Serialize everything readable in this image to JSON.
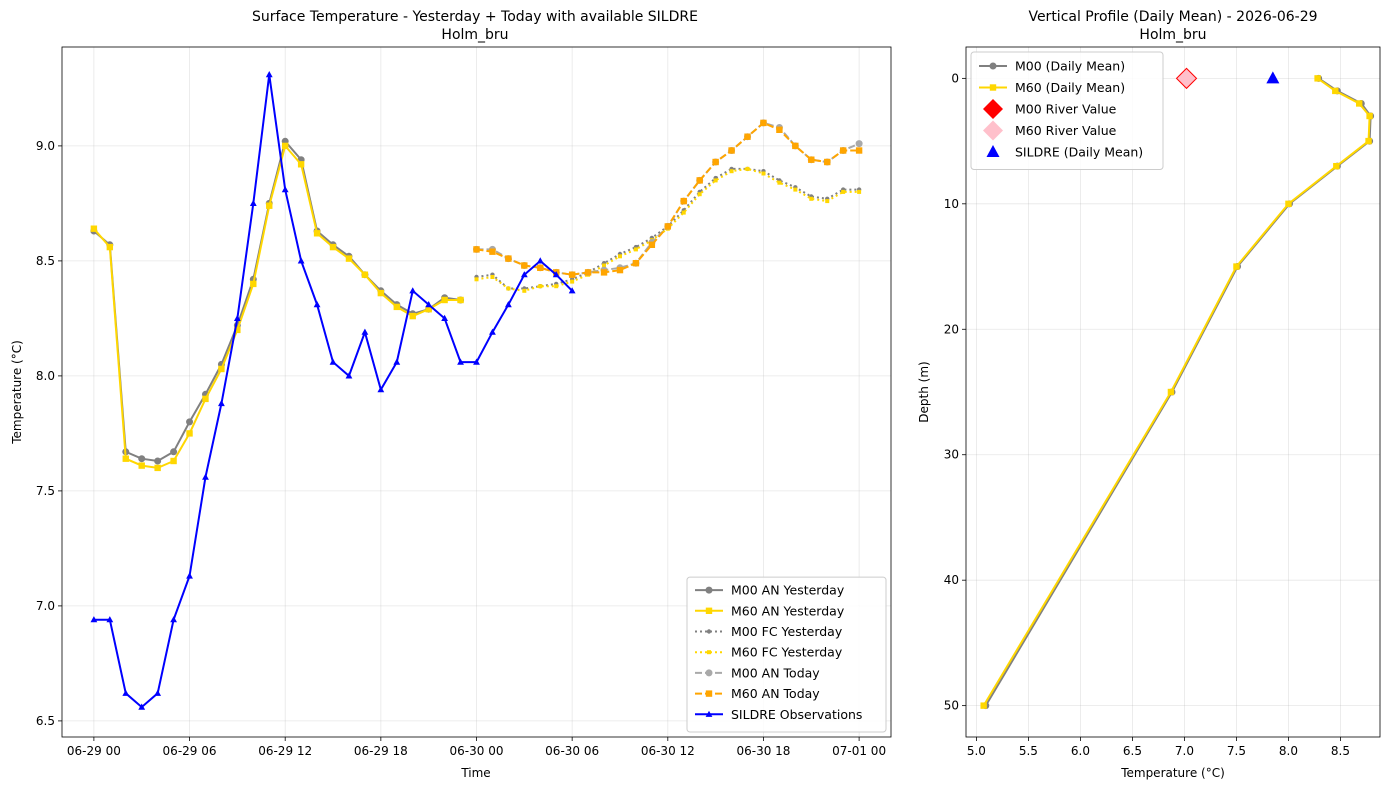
{
  "chart_data": [
    {
      "type": "line",
      "title": "Surface Temperature - Yesterday + Today with available SILDRE",
      "subtitle": "Holm_bru",
      "xlabel": "Time",
      "ylabel": "Temperature (°C)",
      "xlim": [
        -2,
        50
      ],
      "ylim": [
        6.43,
        9.43
      ],
      "x_ticks": [
        0,
        6,
        12,
        18,
        24,
        30,
        36,
        42,
        48
      ],
      "x_tick_labels": [
        "06-29 00",
        "06-29 06",
        "06-29 12",
        "06-29 18",
        "06-30 00",
        "06-30 06",
        "06-30 12",
        "06-30 18",
        "07-01 00"
      ],
      "y_ticks": [
        6.5,
        7.0,
        7.5,
        8.0,
        8.5,
        9.0
      ],
      "y_tick_labels": [
        "6.5",
        "7.0",
        "7.5",
        "8.0",
        "8.5",
        "9.0"
      ],
      "grid": true,
      "legend_position": "lower-right",
      "series": [
        {
          "name": "M00 AN Yesterday",
          "color": "#808080",
          "style": "solid",
          "marker": "circle",
          "x": [
            0,
            1,
            2,
            3,
            4,
            5,
            6,
            7,
            8,
            9,
            10,
            11,
            12,
            13,
            14,
            15,
            16,
            17,
            18,
            19,
            20,
            21,
            22,
            23
          ],
          "y": [
            8.63,
            8.57,
            7.67,
            7.64,
            7.63,
            7.67,
            7.8,
            7.92,
            8.05,
            8.22,
            8.42,
            8.75,
            9.02,
            8.94,
            8.63,
            8.57,
            8.52,
            8.44,
            8.37,
            8.31,
            8.27,
            8.29,
            8.34,
            8.33
          ]
        },
        {
          "name": "M60 AN Yesterday",
          "color": "#ffd700",
          "style": "solid",
          "marker": "square",
          "x": [
            0,
            1,
            2,
            3,
            4,
            5,
            6,
            7,
            8,
            9,
            10,
            11,
            12,
            13,
            14,
            15,
            16,
            17,
            18,
            19,
            20,
            21,
            22,
            23
          ],
          "y": [
            8.64,
            8.56,
            7.64,
            7.61,
            7.6,
            7.63,
            7.75,
            7.9,
            8.03,
            8.2,
            8.4,
            8.74,
            9.0,
            8.92,
            8.62,
            8.56,
            8.51,
            8.44,
            8.36,
            8.3,
            8.26,
            8.29,
            8.33,
            8.33
          ]
        },
        {
          "name": "M00 FC Yesterday",
          "color": "#808080",
          "style": "dotted",
          "marker": "circle-small",
          "x": [
            24,
            25,
            26,
            27,
            28,
            29,
            30,
            31,
            32,
            33,
            34,
            35,
            36,
            37,
            38,
            39,
            40,
            41,
            42,
            43,
            44,
            45,
            46,
            47,
            48
          ],
          "y": [
            8.43,
            8.44,
            8.38,
            8.38,
            8.39,
            8.4,
            8.42,
            8.45,
            8.49,
            8.53,
            8.56,
            8.6,
            8.65,
            8.72,
            8.8,
            8.86,
            8.9,
            8.9,
            8.89,
            8.85,
            8.82,
            8.78,
            8.77,
            8.81,
            8.81
          ]
        },
        {
          "name": "M60 FC Yesterday",
          "color": "#ffd700",
          "style": "dotted",
          "marker": "square-small",
          "x": [
            24,
            25,
            26,
            27,
            28,
            29,
            30,
            31,
            32,
            33,
            34,
            35,
            36,
            37,
            38,
            39,
            40,
            41,
            42,
            43,
            44,
            45,
            46,
            47,
            48
          ],
          "y": [
            8.42,
            8.43,
            8.38,
            8.37,
            8.39,
            8.39,
            8.41,
            8.44,
            8.48,
            8.52,
            8.55,
            8.59,
            8.64,
            8.71,
            8.79,
            8.85,
            8.89,
            8.9,
            8.88,
            8.84,
            8.81,
            8.77,
            8.76,
            8.8,
            8.8
          ]
        },
        {
          "name": "M00 AN Today",
          "color": "#a9a9a9",
          "style": "dashed",
          "marker": "circle",
          "x": [
            24,
            25,
            26,
            27,
            28,
            29,
            30,
            31,
            32,
            33,
            34,
            35,
            36,
            37,
            38,
            39,
            40,
            41,
            42,
            43,
            44,
            45,
            46,
            47,
            48
          ],
          "y": [
            8.55,
            8.55,
            8.51,
            8.48,
            8.47,
            8.45,
            8.44,
            8.45,
            8.46,
            8.47,
            8.49,
            8.58,
            8.65,
            8.76,
            8.85,
            8.93,
            8.98,
            9.04,
            9.1,
            9.08,
            9.0,
            8.94,
            8.93,
            8.98,
            9.01
          ]
        },
        {
          "name": "M60 AN Today",
          "color": "#ffa500",
          "style": "dashed",
          "marker": "square",
          "x": [
            24,
            25,
            26,
            27,
            28,
            29,
            30,
            31,
            32,
            33,
            34,
            35,
            36,
            37,
            38,
            39,
            40,
            41,
            42,
            43,
            44,
            45,
            46,
            47,
            48
          ],
          "y": [
            8.55,
            8.54,
            8.51,
            8.48,
            8.47,
            8.45,
            8.44,
            8.45,
            8.45,
            8.46,
            8.49,
            8.57,
            8.65,
            8.76,
            8.85,
            8.93,
            8.98,
            9.04,
            9.1,
            9.07,
            9.0,
            8.94,
            8.93,
            8.98,
            8.98
          ]
        },
        {
          "name": "SILDRE Observations",
          "color": "#0000ff",
          "style": "solid",
          "marker": "triangle",
          "x": [
            0,
            1,
            2,
            3,
            4,
            5,
            6,
            7,
            8,
            9,
            10,
            11,
            12,
            13,
            14,
            15,
            16,
            17,
            18,
            19,
            20,
            21,
            22,
            23,
            24,
            25,
            26,
            27,
            28,
            29,
            30
          ],
          "y": [
            6.94,
            6.94,
            6.62,
            6.56,
            6.62,
            6.94,
            7.13,
            7.56,
            7.88,
            8.25,
            8.75,
            9.31,
            8.81,
            8.5,
            8.31,
            8.06,
            8.0,
            8.19,
            7.94,
            8.06,
            8.37,
            8.31,
            8.25,
            8.06,
            8.06,
            8.19,
            8.31,
            8.44,
            8.5,
            8.44,
            8.37
          ]
        }
      ]
    },
    {
      "type": "line",
      "title": "Vertical Profile (Daily Mean) - 2026-06-29",
      "subtitle": "Holm_bru",
      "xlabel": "Temperature (°C)",
      "ylabel": "Depth (m)",
      "xlim": [
        4.9,
        8.88
      ],
      "ylim": [
        -2.5,
        52.5
      ],
      "y_inverted": true,
      "x_ticks": [
        5.0,
        5.5,
        6.0,
        6.5,
        7.0,
        7.5,
        8.0,
        8.5
      ],
      "x_tick_labels": [
        "5.0",
        "5.5",
        "6.0",
        "6.5",
        "7.0",
        "7.5",
        "8.0",
        "8.5"
      ],
      "y_ticks": [
        0,
        10,
        20,
        30,
        40,
        50
      ],
      "y_tick_labels": [
        "0",
        "10",
        "20",
        "30",
        "40",
        "50"
      ],
      "grid": true,
      "legend_position": "upper-left",
      "series": [
        {
          "name": "M00 (Daily Mean)",
          "color": "#808080",
          "style": "solid",
          "marker": "circle",
          "temperature": [
            8.29,
            8.47,
            8.7,
            8.79,
            8.78,
            8.47,
            8.01,
            7.51,
            6.88,
            5.09
          ],
          "depth": [
            0,
            1,
            2,
            3,
            5,
            7,
            10,
            15,
            25,
            50
          ]
        },
        {
          "name": "M60 (Daily Mean)",
          "color": "#ffd700",
          "style": "solid",
          "marker": "square",
          "temperature": [
            8.28,
            8.45,
            8.68,
            8.78,
            8.77,
            8.46,
            8.0,
            7.5,
            6.87,
            5.07
          ],
          "depth": [
            0,
            1,
            2,
            3,
            5,
            7,
            10,
            15,
            25,
            50
          ]
        },
        {
          "name": "M00 River Value",
          "color": "#ff0000",
          "style": "none",
          "marker": "diamond",
          "temperature": [
            7.02
          ],
          "depth": [
            0
          ]
        },
        {
          "name": "M60 River Value",
          "color": "#ffc0cb",
          "style": "none",
          "marker": "diamond",
          "temperature": [
            7.02
          ],
          "depth": [
            0
          ]
        },
        {
          "name": "SILDRE (Daily Mean)",
          "color": "#0000ff",
          "style": "none",
          "marker": "triangle",
          "temperature": [
            7.85
          ],
          "depth": [
            0
          ]
        }
      ]
    }
  ]
}
